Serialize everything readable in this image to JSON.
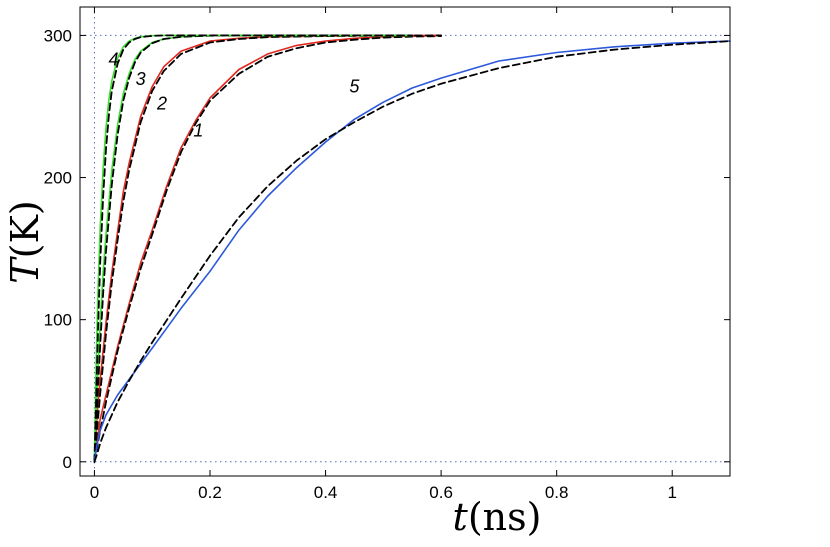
{
  "chart_data": {
    "type": "line",
    "xlabel": {
      "var": "t",
      "unit": "(ns)"
    },
    "ylabel": {
      "var": "T",
      "unit": "(K)"
    },
    "xlim": [
      -0.025,
      1.1
    ],
    "ylim": [
      -10,
      320
    ],
    "xticks": [
      0,
      0.2,
      0.4,
      0.6,
      0.8,
      1
    ],
    "xtick_labels": [
      "0",
      "0.2",
      "0.4",
      "0.6",
      "0.8",
      "1"
    ],
    "yticks": [
      0,
      100,
      200,
      300
    ],
    "ytick_labels": [
      "0",
      "100",
      "200",
      "300"
    ],
    "grid": false,
    "reference_lines": [
      {
        "orientation": "horizontal",
        "value": 300,
        "style": "dotted",
        "color": "#5a6fb8"
      },
      {
        "orientation": "horizontal",
        "value": 0,
        "style": "dotted",
        "color": "#5a6fb8"
      },
      {
        "orientation": "vertical",
        "value": 0,
        "style": "dotted",
        "color": "#5a6fb8"
      }
    ],
    "series": [
      {
        "label": "1",
        "color": "#e0281e",
        "style": "solid",
        "xmax": 0.6,
        "x": [
          0,
          0.01,
          0.02,
          0.04,
          0.06,
          0.08,
          0.1,
          0.125,
          0.15,
          0.175,
          0.2,
          0.25,
          0.3,
          0.35,
          0.4,
          0.45,
          0.5,
          0.55,
          0.6
        ],
        "y": [
          0,
          30,
          47,
          81,
          111,
          140,
          163,
          194,
          221,
          240,
          256,
          276,
          287,
          293,
          296,
          298,
          299,
          299.5,
          300
        ],
        "label_pos": {
          "x": 0.18,
          "y": 229
        }
      },
      {
        "label": "1-fit",
        "color": "#000000",
        "style": "dashed",
        "xmax": 0.6,
        "x": [
          0,
          0.01,
          0.02,
          0.04,
          0.06,
          0.08,
          0.1,
          0.125,
          0.15,
          0.175,
          0.2,
          0.25,
          0.3,
          0.35,
          0.4,
          0.45,
          0.5,
          0.55,
          0.6
        ],
        "y": [
          0,
          22,
          42,
          78,
          108,
          136,
          160,
          191,
          218,
          238,
          254,
          273,
          285,
          291,
          295,
          297,
          298.5,
          299.2,
          299.5
        ]
      },
      {
        "label": "2",
        "color": "#e0281e",
        "style": "solid",
        "xmax": 0.6,
        "x": [
          0,
          0.005,
          0.01,
          0.02,
          0.03,
          0.04,
          0.05,
          0.06,
          0.08,
          0.1,
          0.12,
          0.15,
          0.2,
          0.25,
          0.3,
          0.4,
          0.5,
          0.6
        ],
        "y": [
          0,
          35,
          58,
          98,
          133,
          162,
          190,
          210,
          243,
          264,
          278,
          289,
          296,
          298,
          299,
          299.5,
          300,
          300
        ],
        "label_pos": {
          "x": 0.117,
          "y": 248
        }
      },
      {
        "label": "2-fit",
        "color": "#000000",
        "style": "dashed",
        "xmax": 0.6,
        "x": [
          0,
          0.005,
          0.01,
          0.02,
          0.03,
          0.04,
          0.05,
          0.06,
          0.08,
          0.1,
          0.12,
          0.15,
          0.2,
          0.25,
          0.3,
          0.4,
          0.5,
          0.6
        ],
        "y": [
          0,
          24,
          48,
          90,
          126,
          156,
          183,
          205,
          239,
          261,
          275,
          287,
          295,
          297.5,
          298.8,
          299.5,
          299.8,
          300
        ]
      },
      {
        "label": "3",
        "color": "#39e02c",
        "style": "solid",
        "xmax": 0.55,
        "x": [
          0,
          0.005,
          0.01,
          0.015,
          0.02,
          0.03,
          0.04,
          0.05,
          0.06,
          0.07,
          0.08,
          0.1,
          0.12,
          0.15,
          0.2,
          0.3,
          0.4,
          0.55
        ],
        "y": [
          0,
          55,
          97,
          133,
          160,
          205,
          237,
          259,
          273,
          283,
          289,
          295,
          297.5,
          299,
          300,
          300,
          300,
          300
        ],
        "label_pos": {
          "x": 0.08,
          "y": 265
        }
      },
      {
        "label": "3-fit",
        "color": "#000000",
        "style": "dashed",
        "xmax": 0.55,
        "x": [
          0,
          0.005,
          0.01,
          0.015,
          0.02,
          0.03,
          0.04,
          0.05,
          0.06,
          0.07,
          0.08,
          0.1,
          0.12,
          0.15,
          0.2,
          0.3,
          0.4,
          0.55
        ],
        "y": [
          0,
          42,
          82,
          118,
          148,
          195,
          230,
          254,
          270,
          281,
          288,
          294.5,
          297.5,
          299,
          299.8,
          300,
          300,
          300
        ]
      },
      {
        "label": "4",
        "color": "#39e02c",
        "style": "solid",
        "xmax": 0.55,
        "x": [
          0,
          0.003,
          0.006,
          0.01,
          0.015,
          0.02,
          0.025,
          0.03,
          0.04,
          0.05,
          0.06,
          0.07,
          0.08,
          0.1,
          0.12,
          0.15,
          0.2,
          0.3,
          0.55
        ],
        "y": [
          0,
          70,
          118,
          165,
          206,
          235,
          255,
          268,
          284,
          292,
          296,
          298,
          299,
          299.8,
          300,
          300,
          300,
          300,
          300
        ],
        "label_pos": {
          "x": 0.033,
          "y": 279
        }
      },
      {
        "label": "4-fit",
        "color": "#000000",
        "style": "dashed",
        "xmax": 0.55,
        "x": [
          0,
          0.003,
          0.006,
          0.01,
          0.015,
          0.02,
          0.025,
          0.03,
          0.04,
          0.05,
          0.06,
          0.07,
          0.08,
          0.1,
          0.12,
          0.15,
          0.2,
          0.3,
          0.55
        ],
        "y": [
          0,
          45,
          90,
          140,
          186,
          220,
          244,
          261,
          280,
          290,
          295,
          297.5,
          298.8,
          299.7,
          300,
          300,
          300,
          300,
          300
        ]
      },
      {
        "label": "5",
        "color": "#2c58dc",
        "style": "solid",
        "xmax": 1.1,
        "x": [
          0,
          0.005,
          0.01,
          0.02,
          0.04,
          0.06,
          0.08,
          0.1,
          0.15,
          0.2,
          0.25,
          0.3,
          0.35,
          0.4,
          0.45,
          0.5,
          0.55,
          0.6,
          0.7,
          0.8,
          0.9,
          1.0,
          1.1
        ],
        "y": [
          0,
          13,
          22,
          33,
          47,
          58,
          69,
          80,
          108,
          134,
          163,
          187,
          207,
          225,
          241,
          253,
          263,
          270,
          282,
          288,
          292,
          294.5,
          296
        ],
        "label_pos": {
          "x": 0.45,
          "y": 260
        }
      },
      {
        "label": "5-fit",
        "color": "#000000",
        "style": "dashed",
        "xmax": 1.1,
        "x": [
          0,
          0.005,
          0.01,
          0.02,
          0.04,
          0.06,
          0.08,
          0.1,
          0.15,
          0.2,
          0.25,
          0.3,
          0.35,
          0.4,
          0.45,
          0.5,
          0.55,
          0.6,
          0.7,
          0.8,
          0.9,
          1.0,
          1.1
        ],
        "y": [
          0,
          6,
          13,
          24,
          42,
          57,
          71,
          84,
          115,
          145,
          172,
          194,
          212,
          227,
          239,
          250,
          259,
          266,
          277,
          285,
          290,
          293.5,
          296
        ]
      }
    ]
  }
}
